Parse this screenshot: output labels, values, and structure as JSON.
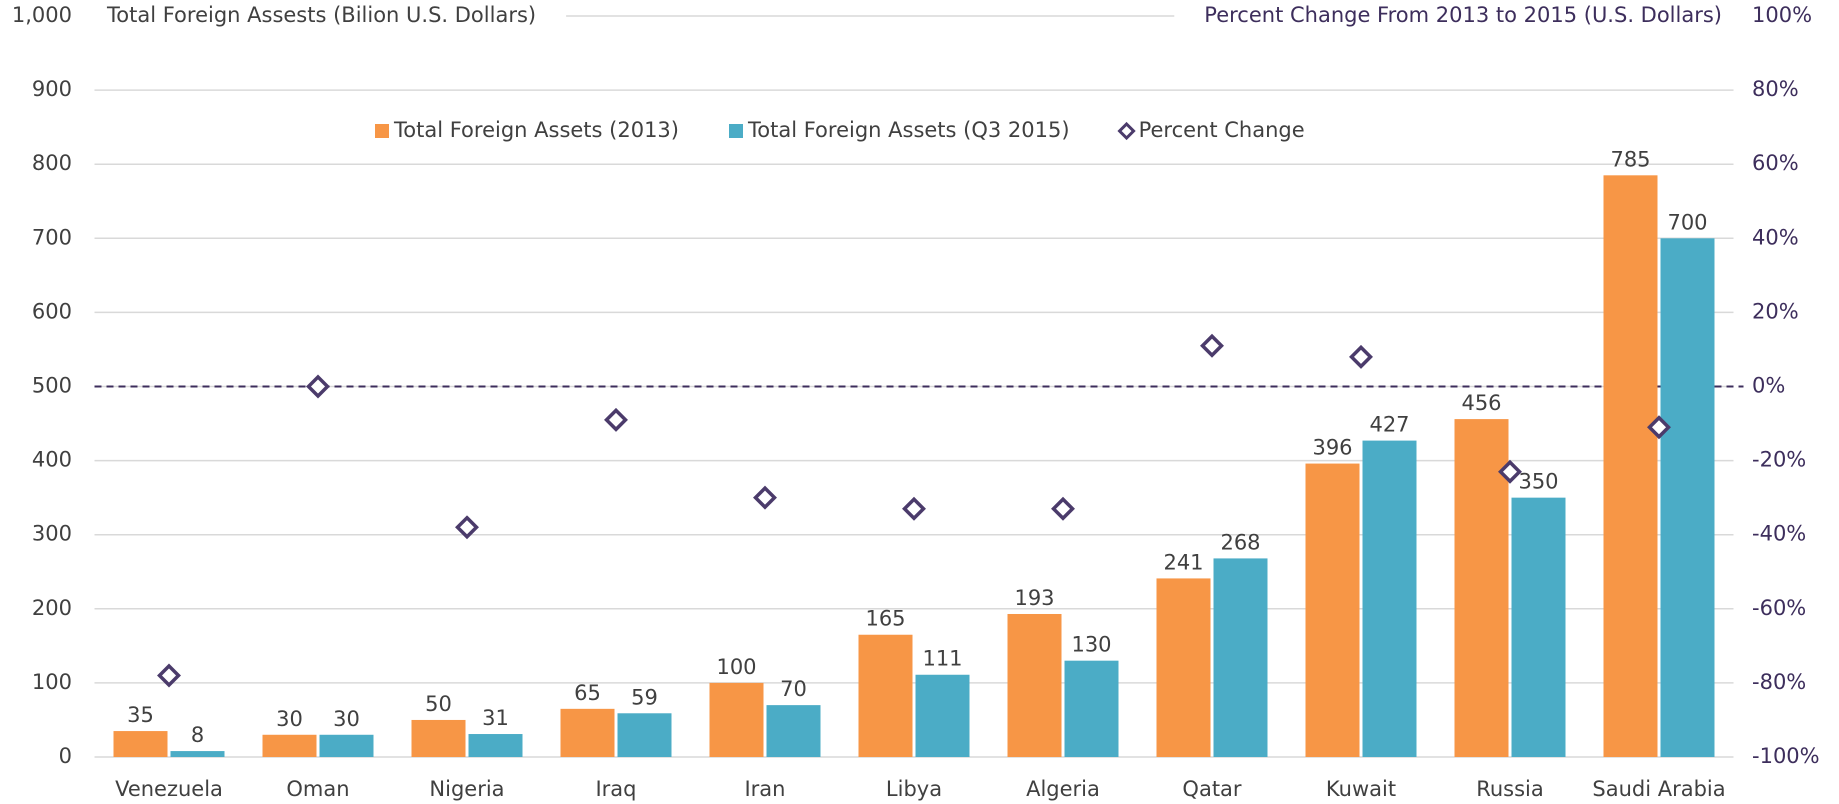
{
  "chart_data": {
    "type": "bar",
    "title": "Total Foreign Assests (Bilion U.S. Dollars)",
    "y2_title": "Percent Change From 2013 to 2015 (U.S. Dollars)",
    "categories": [
      "Venezuela",
      "Oman",
      "Nigeria",
      "Iraq",
      "Iran",
      "Libya",
      "Algeria",
      "Qatar",
      "Kuwait",
      "Russia",
      "Saudi Arabia"
    ],
    "series": [
      {
        "name": "Total Foreign Assets (2013)",
        "type": "bar",
        "color": "#f79646",
        "values": [
          35,
          30,
          50,
          65,
          100,
          165,
          193,
          241,
          396,
          456,
          785
        ]
      },
      {
        "name": "Total Foreign Assets (Q3 2015)",
        "type": "bar",
        "color": "#4bacc6",
        "values": [
          8,
          30,
          31,
          59,
          70,
          111,
          130,
          268,
          427,
          350,
          700
        ]
      },
      {
        "name": "Percent Change",
        "type": "scatter",
        "axis": "y2",
        "color": "#4b3b6b",
        "values": [
          -78,
          0,
          -38,
          -9,
          -30,
          -33,
          -33,
          11,
          8,
          -23,
          -11
        ]
      }
    ],
    "ylim": [
      0,
      1000
    ],
    "yticks": [
      0,
      100,
      200,
      300,
      400,
      500,
      600,
      700,
      800,
      900,
      {
        "value": 1000,
        "label": "1,000"
      }
    ],
    "y2lim": [
      -100,
      100
    ],
    "y2ticks": [
      {
        "value": -100,
        "label": "-100%"
      },
      {
        "value": -80,
        "label": "-80%"
      },
      {
        "value": -60,
        "label": "-60%"
      },
      {
        "value": -40,
        "label": "-40%"
      },
      {
        "value": -20,
        "label": "-20%"
      },
      {
        "value": 0,
        "label": "0%"
      },
      {
        "value": 20,
        "label": "20%"
      },
      {
        "value": 40,
        "label": "40%"
      },
      {
        "value": 60,
        "label": "60%"
      },
      {
        "value": 80,
        "label": "80%"
      },
      {
        "value": 100,
        "label": "100%"
      }
    ],
    "y2_reference": 0,
    "grid": true,
    "legend": "top"
  }
}
